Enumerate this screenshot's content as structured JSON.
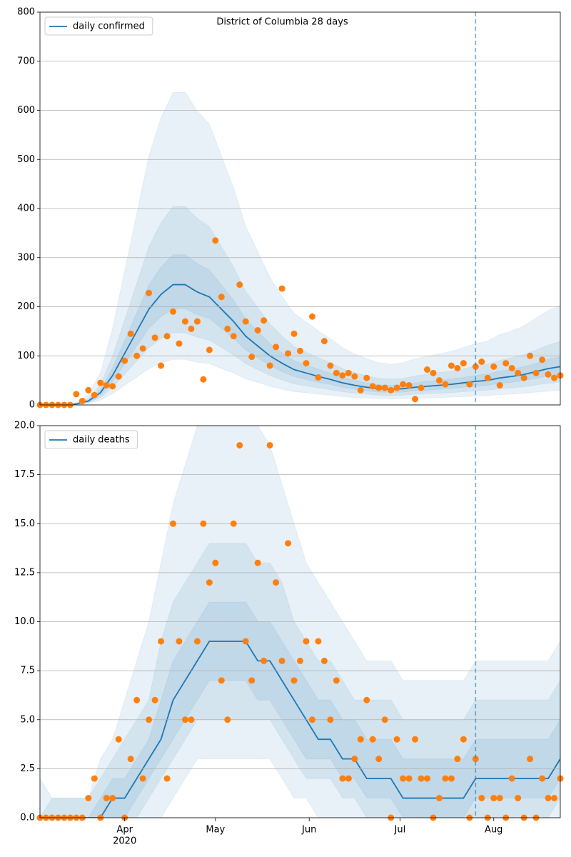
{
  "chart_data": [
    {
      "type": "line",
      "title": "District of Columbia 28 days",
      "xlim": [
        0,
        172
      ],
      "ylim": [
        0,
        800
      ],
      "yticks": [
        0,
        100,
        200,
        300,
        400,
        500,
        600,
        700,
        800
      ],
      "grid": true,
      "legend": "upper left",
      "vline": 144,
      "x": [
        0,
        4,
        8,
        12,
        16,
        20,
        24,
        28,
        32,
        36,
        40,
        44,
        48,
        52,
        56,
        60,
        64,
        68,
        72,
        76,
        80,
        84,
        88,
        92,
        96,
        100,
        104,
        108,
        112,
        116,
        120,
        124,
        128,
        132,
        136,
        140,
        144,
        148,
        152,
        156,
        160,
        164,
        168,
        172
      ],
      "series": [
        {
          "name": "daily confirmed",
          "color": "#1f77b4",
          "values": [
            0,
            0,
            0,
            2,
            8,
            25,
            60,
            105,
            150,
            195,
            225,
            245,
            245,
            230,
            220,
            195,
            170,
            140,
            120,
            100,
            85,
            72,
            65,
            58,
            52,
            45,
            40,
            36,
            33,
            32,
            33,
            36,
            38,
            40,
            42,
            45,
            48,
            50,
            55,
            58,
            62,
            68,
            74,
            78
          ]
        }
      ],
      "bands": [
        {
          "lower": [
            0,
            0,
            0,
            1,
            3,
            10,
            23,
            40,
            57,
            74,
            86,
            93,
            93,
            87,
            84,
            74,
            65,
            53,
            46,
            38,
            32,
            27,
            25,
            22,
            20,
            17,
            15,
            14,
            13,
            12,
            13,
            14,
            14,
            15,
            16,
            17,
            18,
            19,
            21,
            22,
            24,
            26,
            28,
            30
          ],
          "upper": [
            0,
            0,
            0,
            5,
            21,
            65,
            156,
            273,
            390,
            507,
            585,
            637,
            637,
            598,
            572,
            507,
            442,
            364,
            312,
            260,
            221,
            187,
            169,
            151,
            135,
            117,
            104,
            94,
            86,
            83,
            86,
            94,
            99,
            104,
            109,
            117,
            125,
            130,
            143,
            151,
            161,
            177,
            192,
            203
          ]
        },
        {
          "lower": [
            0,
            0,
            0,
            1,
            5,
            15,
            36,
            63,
            90,
            117,
            135,
            147,
            147,
            138,
            132,
            117,
            102,
            84,
            72,
            60,
            51,
            43,
            39,
            35,
            31,
            27,
            24,
            22,
            20,
            19,
            20,
            22,
            23,
            24,
            25,
            27,
            29,
            30,
            33,
            35,
            37,
            41,
            44,
            47
          ],
          "upper": [
            0,
            0,
            0,
            3,
            13,
            41,
            99,
            173,
            248,
            322,
            371,
            404,
            404,
            380,
            363,
            322,
            281,
            231,
            198,
            165,
            140,
            119,
            107,
            96,
            86,
            74,
            66,
            59,
            54,
            53,
            54,
            59,
            63,
            66,
            69,
            74,
            79,
            83,
            91,
            96,
            102,
            112,
            122,
            129
          ]
        },
        {
          "lower": [
            0,
            0,
            0,
            2,
            6,
            20,
            48,
            84,
            120,
            156,
            180,
            196,
            196,
            184,
            176,
            156,
            136,
            112,
            96,
            80,
            68,
            58,
            52,
            46,
            42,
            36,
            32,
            29,
            26,
            26,
            26,
            29,
            30,
            32,
            34,
            36,
            38,
            40,
            44,
            46,
            50,
            54,
            59,
            62
          ],
          "upper": [
            0,
            0,
            0,
            3,
            10,
            31,
            75,
            131,
            188,
            244,
            281,
            306,
            306,
            288,
            275,
            244,
            213,
            175,
            150,
            125,
            106,
            90,
            81,
            73,
            65,
            56,
            50,
            45,
            41,
            40,
            41,
            45,
            48,
            50,
            53,
            56,
            60,
            63,
            69,
            73,
            78,
            85,
            93,
            98
          ]
        }
      ],
      "points": {
        "color": "#ff7f0e",
        "x": [
          0,
          2,
          4,
          6,
          8,
          10,
          12,
          14,
          16,
          18,
          20,
          22,
          24,
          26,
          28,
          30,
          32,
          34,
          36,
          38,
          40,
          42,
          44,
          46,
          48,
          50,
          52,
          54,
          56,
          58,
          60,
          62,
          64,
          66,
          68,
          70,
          72,
          74,
          76,
          78,
          80,
          82,
          84,
          86,
          88,
          90,
          92,
          94,
          96,
          98,
          100,
          102,
          104,
          106,
          108,
          110,
          112,
          114,
          116,
          118,
          120,
          122,
          124,
          126,
          128,
          130,
          132,
          134,
          136,
          138,
          140,
          142,
          144,
          146,
          148,
          150,
          152,
          154,
          156,
          158,
          160,
          162,
          164,
          166,
          168,
          170,
          172
        ],
        "values": [
          0,
          0,
          0,
          0,
          0,
          0,
          22,
          8,
          30,
          20,
          45,
          40,
          38,
          58,
          90,
          145,
          100,
          115,
          228,
          137,
          80,
          140,
          190,
          125,
          170,
          155,
          170,
          52,
          112,
          335,
          220,
          155,
          140,
          245,
          170,
          98,
          152,
          172,
          80,
          118,
          237,
          105,
          145,
          110,
          85,
          180,
          56,
          130,
          80,
          65,
          60,
          65,
          58,
          30,
          55,
          38,
          35,
          35,
          30,
          35,
          42,
          40,
          12,
          35,
          72,
          65,
          50,
          42,
          80,
          75,
          85,
          42,
          78,
          88,
          55,
          78,
          40,
          85,
          75,
          65,
          55,
          100,
          65,
          92,
          62,
          55,
          60
        ]
      }
    },
    {
      "type": "line",
      "xlim": [
        0,
        172
      ],
      "ylim": [
        0,
        20
      ],
      "yticks": [
        {
          "value": 0,
          "label": "0.0"
        },
        {
          "value": 2.5,
          "label": "2.5"
        },
        {
          "value": 5,
          "label": "5.0"
        },
        {
          "value": 7.5,
          "label": "7.5"
        },
        {
          "value": 10,
          "label": "10.0"
        },
        {
          "value": 12.5,
          "label": "12.5"
        },
        {
          "value": 15,
          "label": "15.0"
        },
        {
          "value": 17.5,
          "label": "17.5"
        },
        {
          "value": 20,
          "label": "20.0"
        }
      ],
      "xticks": [
        {
          "value": 28,
          "label": "Apr"
        },
        {
          "value": 58,
          "label": "May"
        },
        {
          "value": 89,
          "label": "Jun"
        },
        {
          "value": 119,
          "label": "Jul"
        },
        {
          "value": 150,
          "label": "Aug"
        }
      ],
      "xtick_year": "2020",
      "grid": true,
      "legend": "upper left",
      "vline": 144,
      "x": [
        0,
        4,
        8,
        12,
        16,
        20,
        24,
        28,
        32,
        36,
        40,
        44,
        48,
        52,
        56,
        60,
        64,
        68,
        72,
        76,
        80,
        84,
        88,
        92,
        96,
        100,
        104,
        108,
        112,
        116,
        120,
        124,
        128,
        132,
        136,
        140,
        144,
        148,
        152,
        156,
        160,
        164,
        168,
        172
      ],
      "series": [
        {
          "name": "daily deaths",
          "color": "#1f77b4",
          "values": [
            0,
            0,
            0,
            0,
            0,
            0,
            1,
            1,
            2,
            3,
            4,
            6,
            7,
            8,
            9,
            9,
            9,
            9,
            8,
            8,
            7,
            6,
            5,
            4,
            4,
            3,
            3,
            2,
            2,
            2,
            1,
            1,
            1,
            1,
            1,
            1,
            2,
            2,
            2,
            2,
            2,
            2,
            2,
            3
          ]
        }
      ],
      "bands": [
        {
          "lower": [
            0,
            0,
            0,
            0,
            0,
            0,
            0,
            0,
            0,
            0,
            0,
            1,
            2,
            3,
            3,
            3,
            3,
            3,
            3,
            3,
            2,
            1,
            1,
            0,
            0,
            0,
            0,
            0,
            0,
            0,
            0,
            0,
            0,
            0,
            0,
            0,
            0,
            0,
            0,
            0,
            0,
            0,
            0,
            0
          ],
          "upper": [
            2,
            1,
            1,
            1,
            1,
            3,
            4,
            6,
            8,
            10,
            13,
            16,
            18,
            20,
            21,
            21,
            21,
            21,
            20,
            19,
            17,
            15,
            13,
            12,
            11,
            10,
            9,
            8,
            8,
            8,
            7,
            7,
            7,
            7,
            7,
            7,
            8,
            8,
            8,
            8,
            8,
            8,
            8,
            9
          ]
        },
        {
          "lower": [
            0,
            0,
            0,
            0,
            0,
            0,
            0,
            0,
            0,
            1,
            2,
            3,
            4,
            5,
            5,
            5,
            5,
            5,
            5,
            5,
            4,
            3,
            2,
            2,
            2,
            1,
            1,
            0,
            0,
            0,
            0,
            0,
            0,
            0,
            0,
            0,
            0,
            0,
            0,
            0,
            0,
            0,
            0,
            1
          ],
          "upper": [
            0,
            1,
            1,
            1,
            1,
            2,
            3,
            4,
            5,
            6,
            9,
            11,
            12,
            13,
            14,
            14,
            14,
            14,
            13,
            13,
            12,
            10,
            9,
            8,
            8,
            7,
            6,
            6,
            6,
            6,
            5,
            5,
            5,
            5,
            5,
            5,
            6,
            6,
            6,
            6,
            6,
            6,
            6,
            7
          ]
        },
        {
          "lower": [
            0,
            0,
            0,
            0,
            0,
            0,
            0,
            0,
            1,
            2,
            3,
            4,
            5,
            6,
            7,
            7,
            7,
            7,
            6,
            6,
            5,
            4,
            3,
            3,
            3,
            2,
            2,
            1,
            1,
            1,
            0,
            0,
            0,
            0,
            0,
            0,
            1,
            1,
            1,
            1,
            1,
            1,
            1,
            2
          ],
          "upper": [
            0,
            0,
            0,
            0,
            0,
            1,
            2,
            2,
            3,
            4,
            6,
            8,
            9,
            10,
            11,
            11,
            11,
            11,
            10,
            10,
            9,
            8,
            7,
            6,
            6,
            5,
            5,
            4,
            4,
            4,
            3,
            3,
            3,
            3,
            3,
            3,
            4,
            4,
            4,
            4,
            4,
            4,
            4,
            5
          ]
        }
      ],
      "points": {
        "color": "#ff7f0e",
        "x": [
          0,
          2,
          4,
          6,
          8,
          10,
          12,
          14,
          16,
          18,
          20,
          22,
          24,
          26,
          28,
          30,
          32,
          34,
          36,
          38,
          40,
          42,
          44,
          46,
          48,
          50,
          52,
          54,
          56,
          58,
          60,
          62,
          64,
          66,
          68,
          70,
          72,
          74,
          76,
          78,
          80,
          82,
          84,
          86,
          88,
          90,
          92,
          94,
          96,
          98,
          100,
          102,
          104,
          106,
          108,
          110,
          112,
          114,
          116,
          118,
          120,
          122,
          124,
          126,
          128,
          130,
          132,
          134,
          136,
          138,
          140,
          142,
          144,
          146,
          148,
          150,
          152,
          154,
          156,
          158,
          160,
          162,
          164,
          166,
          168,
          170,
          172
        ],
        "values": [
          0,
          0,
          0,
          0,
          0,
          0,
          0,
          0,
          1,
          2,
          0,
          1,
          1,
          4,
          0,
          3,
          6,
          2,
          5,
          6,
          9,
          2,
          15,
          9,
          5,
          5,
          9,
          15,
          12,
          13,
          7,
          5,
          15,
          19,
          9,
          7,
          13,
          8,
          19,
          12,
          8,
          14,
          7,
          8,
          9,
          5,
          9,
          8,
          5,
          7,
          2,
          2,
          3,
          4,
          6,
          4,
          3,
          5,
          0,
          4,
          2,
          2,
          4,
          2,
          2,
          0,
          1,
          2,
          2,
          3,
          4,
          0,
          3,
          1,
          0,
          1,
          1,
          0,
          2,
          1,
          0,
          3,
          0,
          2,
          1,
          1,
          2
        ]
      }
    }
  ]
}
